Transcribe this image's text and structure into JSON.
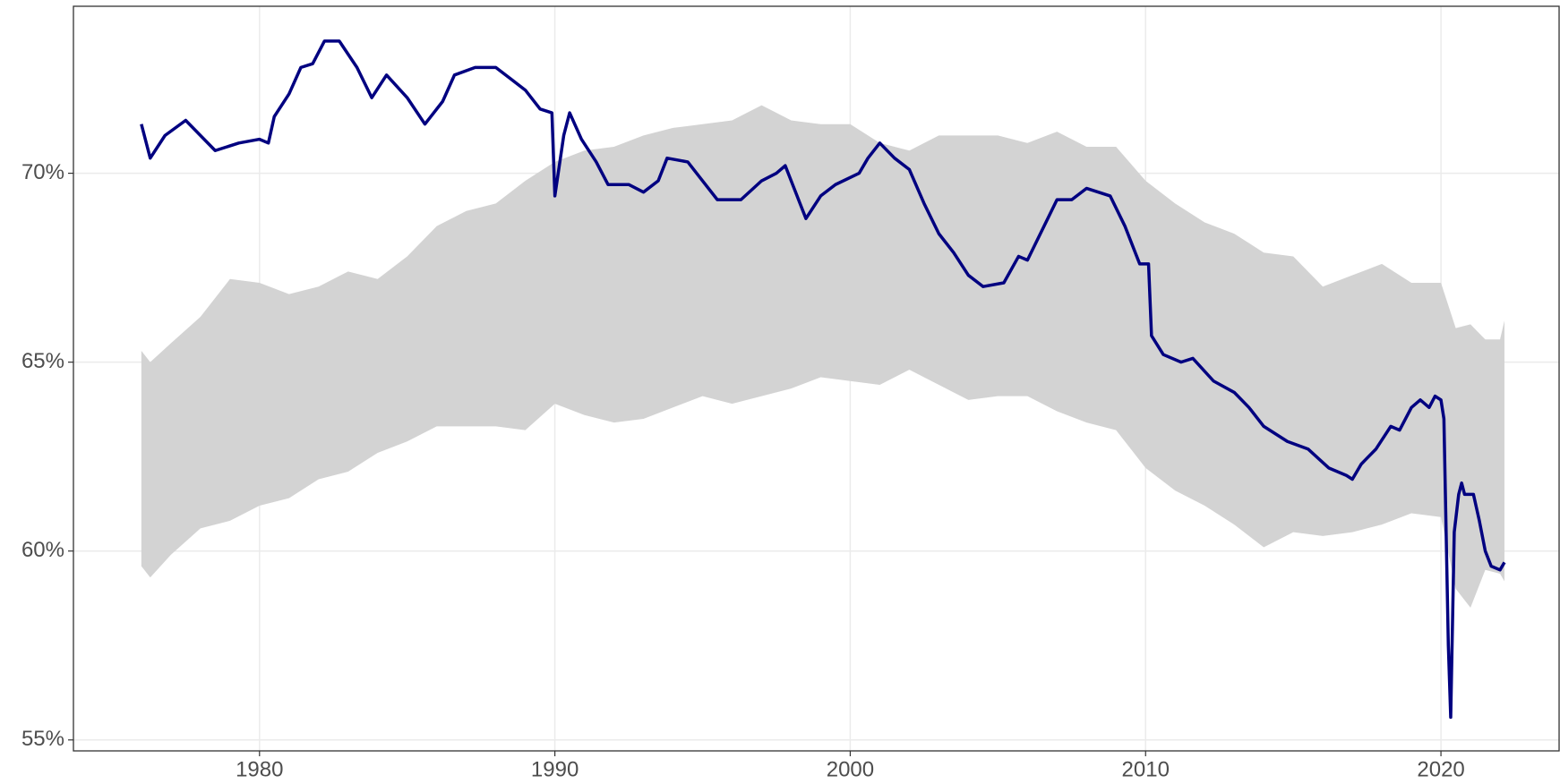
{
  "chart_data": {
    "type": "line",
    "xlim": [
      1973.7,
      2024.0
    ],
    "ylim": [
      54.71,
      74.42
    ],
    "xticks": [
      1980,
      1990,
      2000,
      2010,
      2020
    ],
    "yticks": [
      {
        "value": 55,
        "label": "55%"
      },
      {
        "value": 60,
        "label": "60%"
      },
      {
        "value": 65,
        "label": "65%"
      },
      {
        "value": 70,
        "label": "70%"
      }
    ],
    "grid": true,
    "band": {
      "color": "#d3d3d3",
      "x": [
        1976.0,
        1976.3,
        1977,
        1978,
        1979,
        1980,
        1981,
        1982,
        1983,
        1984,
        1985,
        1986,
        1987,
        1988,
        1989,
        1990,
        1991,
        1992,
        1993,
        1994,
        1995,
        1996,
        1997,
        1998,
        1999,
        2000,
        2001,
        2002,
        2003,
        2004,
        2005,
        2006,
        2007,
        2008,
        2009,
        2010,
        2011,
        2012,
        2013,
        2014,
        2015,
        2016,
        2017,
        2018,
        2019,
        2020,
        2020.5,
        2021,
        2021.5,
        2022,
        2022.15
      ],
      "upper": [
        65.3,
        65.0,
        65.5,
        66.2,
        67.2,
        67.1,
        66.8,
        67.0,
        67.4,
        67.2,
        67.8,
        68.6,
        69.0,
        69.2,
        69.8,
        70.3,
        70.6,
        70.7,
        71.0,
        71.2,
        71.3,
        71.4,
        71.8,
        71.4,
        71.3,
        71.3,
        70.8,
        70.6,
        71.0,
        71.0,
        71.0,
        70.8,
        71.1,
        70.7,
        70.7,
        69.8,
        69.2,
        68.7,
        68.4,
        67.9,
        67.8,
        67.0,
        67.3,
        67.6,
        67.1,
        67.1,
        65.9,
        66.0,
        65.6,
        65.6,
        66.1
      ],
      "lower": [
        59.6,
        59.3,
        59.9,
        60.6,
        60.8,
        61.2,
        61.4,
        61.9,
        62.1,
        62.6,
        62.9,
        63.3,
        63.3,
        63.3,
        63.2,
        63.9,
        63.6,
        63.4,
        63.5,
        63.8,
        64.1,
        63.9,
        64.1,
        64.3,
        64.6,
        64.5,
        64.4,
        64.8,
        64.4,
        64.0,
        64.1,
        64.1,
        63.7,
        63.4,
        63.2,
        62.2,
        61.6,
        61.2,
        60.7,
        60.1,
        60.5,
        60.4,
        60.5,
        60.7,
        61.0,
        60.9,
        59.0,
        58.5,
        59.5,
        59.4,
        59.2
      ]
    },
    "series": [
      {
        "color": "#000080",
        "x": [
          1976.0,
          1976.3,
          1976.8,
          1977.5,
          1978.5,
          1979.3,
          1980.0,
          1980.3,
          1980.5,
          1981.0,
          1981.4,
          1981.8,
          1982.2,
          1982.7,
          1983.3,
          1983.8,
          1984.3,
          1985.0,
          1985.6,
          1986.2,
          1986.6,
          1987.3,
          1988.0,
          1988.5,
          1989.0,
          1989.5,
          1989.9,
          1990.0,
          1990.3,
          1990.5,
          1990.9,
          1991.4,
          1991.8,
          1992.5,
          1993.0,
          1993.5,
          1993.8,
          1994.5,
          1995.0,
          1995.5,
          1996.3,
          1997.0,
          1997.5,
          1997.8,
          1998.3,
          1998.5,
          1999.0,
          1999.5,
          2000.3,
          2000.6,
          2001.0,
          2001.5,
          2002.0,
          2002.5,
          2003.0,
          2003.5,
          2004.0,
          2004.5,
          2005.2,
          2005.7,
          2006.0,
          2006.5,
          2007.0,
          2007.5,
          2008.0,
          2008.8,
          2009.3,
          2009.8,
          2010.1,
          2010.2,
          2010.6,
          2011.2,
          2011.6,
          2012.3,
          2013.0,
          2013.5,
          2014.0,
          2014.8,
          2015.5,
          2016.2,
          2016.8,
          2017.0,
          2017.3,
          2017.8,
          2018.3,
          2018.6,
          2019.0,
          2019.3,
          2019.6,
          2019.8,
          2020.0,
          2020.1,
          2020.25,
          2020.33,
          2020.45,
          2020.6,
          2020.7,
          2020.8,
          2021.1,
          2021.3,
          2021.5,
          2021.7,
          2022.0,
          2022.15
        ],
        "values": [
          71.3,
          70.4,
          71.0,
          71.4,
          70.6,
          70.8,
          70.9,
          70.8,
          71.5,
          72.1,
          72.8,
          72.9,
          73.5,
          73.5,
          72.8,
          72.0,
          72.6,
          72.0,
          71.3,
          71.9,
          72.6,
          72.8,
          72.8,
          72.5,
          72.2,
          71.7,
          71.6,
          69.4,
          71.0,
          71.6,
          70.9,
          70.3,
          69.7,
          69.7,
          69.5,
          69.8,
          70.4,
          70.3,
          69.8,
          69.3,
          69.3,
          69.8,
          70.0,
          70.2,
          69.2,
          68.8,
          69.4,
          69.7,
          70.0,
          70.4,
          70.8,
          70.4,
          70.1,
          69.2,
          68.4,
          67.9,
          67.3,
          67.0,
          67.1,
          67.8,
          67.7,
          68.5,
          69.3,
          69.3,
          69.6,
          69.4,
          68.6,
          67.6,
          67.6,
          65.7,
          65.2,
          65.0,
          65.1,
          64.5,
          64.2,
          63.8,
          63.3,
          62.9,
          62.7,
          62.2,
          62.0,
          61.9,
          62.3,
          62.7,
          63.3,
          63.2,
          63.8,
          64.0,
          63.8,
          64.1,
          64.0,
          63.5,
          57.5,
          55.6,
          60.5,
          61.5,
          61.8,
          61.5,
          61.5,
          60.8,
          60.0,
          59.6,
          59.5,
          59.7
        ]
      }
    ]
  }
}
